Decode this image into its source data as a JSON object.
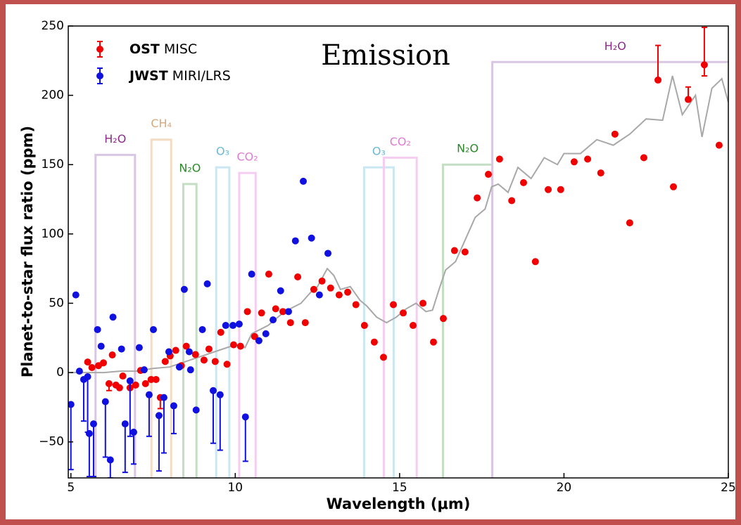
{
  "chart_data": {
    "type": "scatter",
    "annotation": "Emission",
    "x_label": "Wavelength (μm)",
    "y_label": "Planet-to-star flux ratio (ppm)",
    "xlim": [
      4.92,
      25
    ],
    "ylim": [
      -76,
      250
    ],
    "xticks": [
      5,
      10,
      15,
      20,
      25
    ],
    "yticks": [
      {
        "value": -50,
        "label": "−50"
      },
      0,
      50,
      100,
      150,
      200,
      250
    ],
    "legend": "upper left",
    "series": [
      {
        "name": "OST MISC",
        "color": "#f00000",
        "x": [
          5.51,
          5.64,
          5.84,
          5.99,
          6.16,
          6.26,
          6.37,
          6.48,
          6.58,
          6.8,
          6.97,
          7.12,
          7.27,
          7.44,
          7.59,
          7.72,
          7.87,
          8.02,
          8.19,
          8.36,
          8.51,
          8.79,
          9.05,
          9.2,
          9.39,
          9.56,
          9.75,
          9.95,
          10.16,
          10.37,
          10.59,
          10.8,
          11.02,
          11.23,
          11.45,
          11.68,
          11.9,
          12.13,
          12.39,
          12.64,
          12.9,
          13.16,
          13.42,
          13.67,
          13.93,
          14.23,
          14.51,
          14.81,
          15.11,
          15.41,
          15.71,
          16.03,
          16.33,
          16.67,
          16.99,
          17.36,
          17.7,
          18.04,
          18.41,
          18.77,
          19.13,
          19.52,
          19.9,
          20.31,
          20.72,
          21.12,
          21.55,
          22.0,
          22.43,
          22.86,
          23.33,
          23.78,
          24.27,
          24.72
        ],
        "values": [
          7.6,
          3.6,
          5,
          7,
          -8,
          12.7,
          -9,
          -11,
          -2.5,
          -11,
          -9,
          1.5,
          -8,
          -5,
          -5,
          -18,
          8,
          12,
          16,
          5,
          19,
          13,
          9,
          17,
          8,
          29,
          6,
          20,
          19,
          44,
          26,
          43,
          71,
          46,
          44,
          36,
          69,
          36,
          60,
          66,
          61,
          56,
          58,
          49,
          34,
          22,
          11,
          49,
          43,
          34,
          50,
          22,
          39,
          88,
          87,
          126,
          143,
          154,
          124,
          137,
          80,
          132,
          132,
          152,
          154,
          144,
          172,
          108,
          155,
          211,
          134,
          197,
          222,
          164
        ],
        "yerr_lower": [
          null,
          null,
          null,
          null,
          5,
          null,
          null,
          null,
          null,
          null,
          null,
          null,
          null,
          null,
          null,
          8,
          null,
          null,
          null,
          null,
          null,
          null,
          null,
          null,
          null,
          null,
          null,
          null,
          null,
          null,
          null,
          null,
          null,
          null,
          null,
          null,
          null,
          null,
          null,
          null,
          null,
          null,
          null,
          null,
          null,
          null,
          null,
          null,
          null,
          null,
          null,
          null,
          null,
          null,
          null,
          null,
          null,
          null,
          null,
          null,
          null,
          null,
          null,
          null,
          null,
          null,
          null,
          null,
          null,
          null,
          null,
          null,
          8,
          null
        ],
        "yerr_upper": [
          null,
          null,
          null,
          null,
          null,
          null,
          null,
          null,
          null,
          null,
          null,
          null,
          null,
          null,
          null,
          null,
          null,
          null,
          null,
          null,
          null,
          null,
          null,
          null,
          null,
          null,
          null,
          null,
          null,
          null,
          null,
          null,
          null,
          null,
          null,
          null,
          null,
          null,
          null,
          null,
          null,
          null,
          null,
          null,
          null,
          null,
          null,
          null,
          null,
          null,
          null,
          null,
          null,
          null,
          null,
          null,
          null,
          null,
          null,
          null,
          null,
          null,
          null,
          null,
          null,
          null,
          null,
          null,
          null,
          25,
          null,
          9,
          27,
          null
        ]
      },
      {
        "name": "JWST MIRI/LRS",
        "color": "#1010e0",
        "x": [
          5.0,
          5.15,
          5.26,
          5.39,
          5.51,
          5.56,
          5.69,
          5.81,
          5.92,
          6.05,
          6.2,
          6.28,
          6.54,
          6.65,
          6.8,
          6.91,
          7.08,
          7.23,
          7.38,
          7.51,
          7.68,
          7.83,
          7.98,
          8.13,
          8.3,
          8.45,
          8.6,
          8.64,
          8.81,
          9.0,
          9.15,
          9.33,
          9.54,
          9.71,
          9.93,
          10.12,
          10.31,
          10.5,
          10.72,
          10.93,
          11.15,
          11.38,
          11.62,
          11.83,
          12.07,
          12.32,
          12.56,
          12.82
        ],
        "values": [
          -23,
          56,
          1,
          -5,
          -3,
          -44,
          -37,
          31,
          19,
          -21,
          -63,
          40,
          17,
          -37,
          -6,
          -43,
          18,
          2,
          -16,
          31,
          -31,
          -18,
          15,
          -24,
          4,
          60,
          15,
          2,
          -27,
          31,
          64,
          -13,
          -16,
          34,
          34,
          35,
          -32,
          71,
          23,
          28,
          38,
          59,
          44,
          95,
          138,
          97,
          56,
          86
        ],
        "yerr_lower": [
          47,
          null,
          null,
          30,
          40,
          31,
          38,
          null,
          null,
          40,
          13,
          null,
          null,
          35,
          40,
          23,
          null,
          null,
          30,
          null,
          40,
          40,
          null,
          20,
          null,
          null,
          null,
          null,
          null,
          null,
          null,
          38,
          40,
          null,
          null,
          null,
          32,
          null,
          null,
          null,
          null,
          null,
          null,
          null,
          null,
          null,
          null,
          null
        ]
      }
    ],
    "model": {
      "color": "#a8a8a8",
      "x": [
        5,
        5.5,
        6,
        6.5,
        7,
        7.5,
        8,
        8.5,
        9,
        9.5,
        10,
        10.3,
        10.5,
        11,
        11.3,
        11.5,
        12,
        12.3,
        12.5,
        12.8,
        13,
        13.2,
        13.5,
        13.8,
        14,
        14.3,
        14.6,
        14.9,
        15.2,
        15.5,
        15.8,
        16,
        16.2,
        16.4,
        16.7,
        17,
        17.3,
        17.6,
        17.8,
        18,
        18.3,
        18.6,
        19,
        19.4,
        19.8,
        20,
        20.5,
        21,
        21.5,
        22,
        22.5,
        23,
        23.3,
        23.6,
        24,
        24.2,
        24.5,
        24.8,
        25
      ],
      "values": [
        0,
        0,
        0,
        1,
        1,
        3,
        4,
        8,
        12,
        16,
        20,
        18,
        28,
        34,
        40,
        44,
        50,
        58,
        62,
        75,
        70,
        60,
        62,
        52,
        48,
        40,
        36,
        40,
        46,
        50,
        44,
        45,
        60,
        74,
        80,
        96,
        112,
        118,
        134,
        136,
        130,
        148,
        140,
        155,
        150,
        158,
        158,
        168,
        164,
        172,
        183,
        182,
        214,
        186,
        200,
        170,
        205,
        212,
        195
      ]
    },
    "bands": [
      {
        "label": "H₂O",
        "xmin": 5.75,
        "xmax": 6.95,
        "top": 157,
        "color": "#d9c6e2",
        "label_color": "#8b2a8b"
      },
      {
        "label": "CH₄",
        "xmin": 7.45,
        "xmax": 8.05,
        "top": 168,
        "color": "#f3dcc2",
        "label_color": "#d9a77a"
      },
      {
        "label": "N₂O",
        "xmin": 8.42,
        "xmax": 8.82,
        "top": 136,
        "color": "#c3dec3",
        "label_color": "#2a8a2a"
      },
      {
        "label": "O₃",
        "xmin": 9.42,
        "xmax": 9.82,
        "top": 148,
        "color": "#cbe8f2",
        "label_color": "#6ab9d6"
      },
      {
        "label": "CO₂",
        "xmin": 10.12,
        "xmax": 10.62,
        "top": 144,
        "color": "#f6cdf1",
        "label_color": "#e07ad6"
      },
      {
        "label": "O₃",
        "xmin": 13.92,
        "xmax": 14.82,
        "top": 148,
        "color": "#cbe8f2",
        "label_color": "#6ab9d6"
      },
      {
        "label": "CO₂",
        "xmin": 14.52,
        "xmax": 15.52,
        "top": 155,
        "color": "#f6cdf1",
        "label_color": "#e07ad6"
      },
      {
        "label": "N₂O",
        "xmin": 16.32,
        "xmax": 17.82,
        "top": 150,
        "color": "#c3dec3",
        "label_color": "#2a8a2a"
      },
      {
        "label": "H₂O",
        "xmin": 17.82,
        "xmax": 25.3,
        "top": 224,
        "color": "#d9c6e2",
        "label_color": "#8b2a8b"
      }
    ]
  }
}
